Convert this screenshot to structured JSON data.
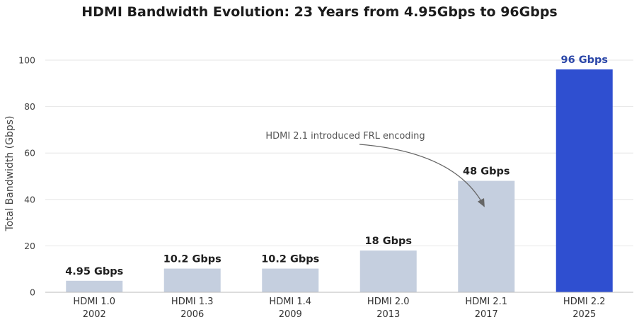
{
  "chart_data": {
    "type": "bar",
    "title": "HDMI Bandwidth Evolution: 23 Years from 4.95Gbps to 96Gbps",
    "ylabel": "Total Bandwidth (Gbps)",
    "xlabel": "",
    "ylim": [
      0,
      100
    ],
    "yticks": [
      0,
      20,
      40,
      60,
      80,
      100
    ],
    "categories": [
      {
        "version": "HDMI 1.0",
        "year": "2002"
      },
      {
        "version": "HDMI 1.3",
        "year": "2006"
      },
      {
        "version": "HDMI 1.4",
        "year": "2009"
      },
      {
        "version": "HDMI 2.0",
        "year": "2013"
      },
      {
        "version": "HDMI 2.1",
        "year": "2017"
      },
      {
        "version": "HDMI 2.2",
        "year": "2025"
      }
    ],
    "values": [
      4.95,
      10.2,
      10.2,
      18,
      48,
      96
    ],
    "value_labels": [
      "4.95 Gbps",
      "10.2 Gbps",
      "10.2 Gbps",
      "18 Gbps",
      "48 Gbps",
      "96 Gbps"
    ],
    "grid": true,
    "colors": {
      "bar": "#c5cfdf",
      "highlight_bar": "#2f4fd0",
      "highlight_label": "#2a46a8",
      "label": "#1f1f1f",
      "grid": "#e6e6e6"
    },
    "highlight_index": 5,
    "annotation": {
      "text": "HDMI 2.1 introduced FRL encoding",
      "target_index": 4
    }
  }
}
